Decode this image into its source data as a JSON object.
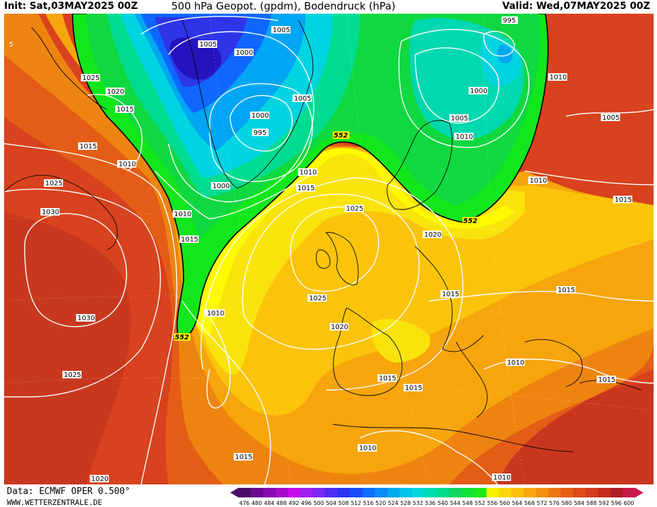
{
  "header": {
    "init": "Init: Sat,03MAY2025 00Z",
    "title": "500 hPa Geopot. (gpdm), Bodendruck (hPa)",
    "valid": "Valid: Wed,07MAY2025 00Z"
  },
  "footer": {
    "data_source": "Data: ECMWF OPER 0.500°",
    "website": "WWW.WETTERZENTRALE.DE"
  },
  "colors": {
    "deep_red": "#c0301f",
    "red": "#d8421e",
    "orange_red": "#e35d16",
    "orange": "#ee8410",
    "amber": "#f6a50c",
    "gold": "#fbc40a",
    "yellow": "#f8e40b",
    "yellow_bright": "#fefa00",
    "green": "#11e71a",
    "green_dark": "#11cc3a",
    "teal": "#00dc8f",
    "cyan": "#00d7e0",
    "sky": "#00a5f3",
    "blue": "#0f67ff",
    "royal": "#2e35e9",
    "indigo": "#2414bd",
    "contour": "#ffffff",
    "line_552": "#000000",
    "coast": "#000000"
  },
  "legend": {
    "values": [
      "476",
      "480",
      "484",
      "488",
      "492",
      "496",
      "500",
      "504",
      "508",
      "512",
      "516",
      "520",
      "524",
      "528",
      "532",
      "536",
      "540",
      "544",
      "548",
      "552",
      "556",
      "560",
      "564",
      "568",
      "572",
      "576",
      "580",
      "584",
      "588",
      "592",
      "596",
      "600"
    ],
    "colors": [
      "#4a0a6b",
      "#6b0a8f",
      "#8a0ab0",
      "#a50ac8",
      "#c80ae8",
      "#a020f0",
      "#7a28f2",
      "#4e2ef2",
      "#2a34ee",
      "#1a4cf8",
      "#106cfa",
      "#0a8cf6",
      "#00a8f0",
      "#00c4ea",
      "#00d8da",
      "#00dcb2",
      "#00dc8a",
      "#10d860",
      "#14e23a",
      "#1aea1a",
      "#f8f000",
      "#fcd80a",
      "#fbc00c",
      "#f8a80e",
      "#f29010",
      "#ec7812",
      "#e66014",
      "#dc4c18",
      "#d23c1c",
      "#c42c20",
      "#b01c24",
      "#c8184c"
    ]
  },
  "map": {
    "line_552_label": "552",
    "pressure_labels": [
      {
        "text": "1005"
      },
      {
        "text": "1005"
      },
      {
        "text": "995"
      },
      {
        "text": "1025"
      },
      {
        "text": "1020"
      },
      {
        "text": "1000"
      },
      {
        "text": "1015"
      },
      {
        "text": "1005"
      },
      {
        "text": "1000"
      },
      {
        "text": "1010"
      },
      {
        "text": "1015"
      },
      {
        "text": "1000"
      },
      {
        "text": "995"
      },
      {
        "text": "1005"
      },
      {
        "text": "1010"
      },
      {
        "text": "1025"
      },
      {
        "text": "1010"
      },
      {
        "text": "1005"
      },
      {
        "text": "1000"
      },
      {
        "text": "1010"
      },
      {
        "text": "1015"
      },
      {
        "text": "1030"
      },
      {
        "text": "1025"
      },
      {
        "text": "1010"
      },
      {
        "text": "1015"
      },
      {
        "text": "1020"
      },
      {
        "text": "1015"
      },
      {
        "text": "1010"
      },
      {
        "text": "1025"
      },
      {
        "text": "1015"
      },
      {
        "text": "1030"
      },
      {
        "text": "1020"
      },
      {
        "text": "1015"
      },
      {
        "text": "1010"
      },
      {
        "text": "1025"
      },
      {
        "text": "1015"
      },
      {
        "text": "1015"
      },
      {
        "text": "1010"
      },
      {
        "text": "1015"
      },
      {
        "text": "1020"
      },
      {
        "text": "1010"
      },
      {
        "text": "1015"
      },
      {
        "text": "1010"
      }
    ],
    "line_552_labels": [
      "552",
      "552",
      "552"
    ],
    "corner_label": "5"
  }
}
